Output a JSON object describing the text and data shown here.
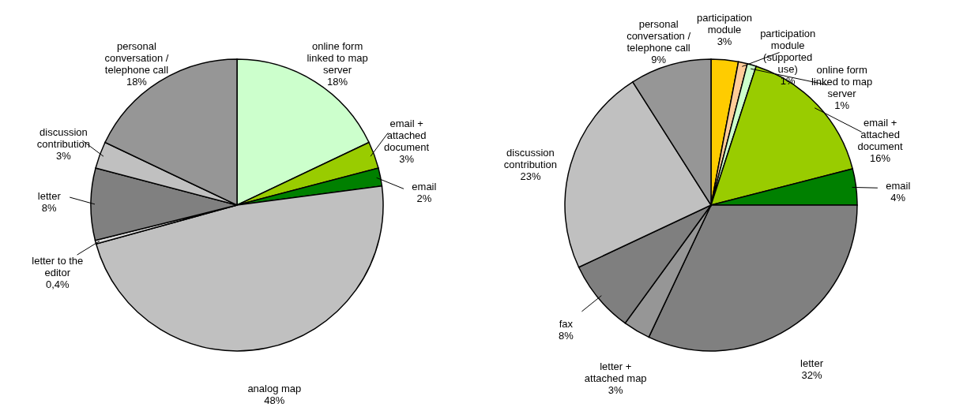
{
  "chart_data": [
    {
      "type": "pie",
      "categories": [
        "online form linked to map server",
        "email + attached document",
        "email",
        "analog map",
        "letter to the editor",
        "letter",
        "discussion contribution",
        "personal conversation / telephone call"
      ],
      "values": [
        18,
        3,
        2,
        48,
        0.4,
        8,
        3,
        18
      ],
      "value_labels": [
        "18%",
        "3%",
        "2%",
        "48%",
        "0,4%",
        "8%",
        "3%",
        "18%"
      ],
      "colors": [
        "#ccffcc",
        "#99cc00",
        "#008000",
        "#c0c0c0",
        "#dddddd",
        "#808080",
        "#c0c0c0",
        "#969696"
      ]
    },
    {
      "type": "pie",
      "categories": [
        "participation module",
        "participation module (supported use)",
        "online form linked to map server",
        "email + attached document",
        "email",
        "letter",
        "letter + attached map",
        "fax",
        "discussion contribution",
        "personal conversation / telephone call"
      ],
      "values": [
        3,
        1,
        1,
        16,
        4,
        32,
        3,
        8,
        23,
        9
      ],
      "value_labels": [
        "3%",
        "1%",
        "1%",
        "16%",
        "4%",
        "32%",
        "3%",
        "8%",
        "23%",
        "9%"
      ],
      "colors": [
        "#ffcc00",
        "#ffcc99",
        "#ccffcc",
        "#99cc00",
        "#008000",
        "#808080",
        "#969696",
        "#7f7f7f",
        "#c0c0c0",
        "#969696"
      ]
    }
  ]
}
